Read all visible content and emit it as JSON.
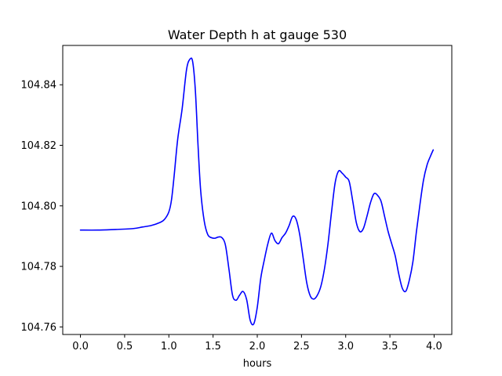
{
  "chart_data": {
    "type": "line",
    "title": "Water Depth h at gauge 530",
    "xlabel": "hours",
    "ylabel": "",
    "xlim": [
      -0.2,
      4.2
    ],
    "ylim": [
      104.7575,
      104.853
    ],
    "grid": false,
    "x_ticks": [
      0.0,
      0.5,
      1.0,
      1.5,
      2.0,
      2.5,
      3.0,
      3.5,
      4.0
    ],
    "x_tick_labels": [
      "0.0",
      "0.5",
      "1.0",
      "1.5",
      "2.0",
      "2.5",
      "3.0",
      "3.5",
      "4.0"
    ],
    "y_ticks": [
      104.76,
      104.78,
      104.8,
      104.82,
      104.84
    ],
    "y_tick_labels": [
      "104.76",
      "104.78",
      "104.80",
      "104.82",
      "104.84"
    ],
    "series": [
      {
        "color": "#0000ff",
        "x": [
          0.0,
          0.2,
          0.4,
          0.6,
          0.7,
          0.8,
          0.9,
          0.95,
          1.0,
          1.03,
          1.06,
          1.1,
          1.15,
          1.2,
          1.24,
          1.27,
          1.3,
          1.33,
          1.36,
          1.4,
          1.44,
          1.48,
          1.52,
          1.56,
          1.6,
          1.64,
          1.68,
          1.72,
          1.76,
          1.8,
          1.84,
          1.88,
          1.92,
          1.96,
          2.0,
          2.04,
          2.08,
          2.12,
          2.16,
          2.2,
          2.24,
          2.28,
          2.32,
          2.36,
          2.4,
          2.44,
          2.48,
          2.52,
          2.56,
          2.6,
          2.64,
          2.68,
          2.72,
          2.76,
          2.8,
          2.84,
          2.88,
          2.92,
          2.96,
          3.0,
          3.04,
          3.08,
          3.12,
          3.16,
          3.2,
          3.24,
          3.28,
          3.32,
          3.36,
          3.4,
          3.44,
          3.48,
          3.52,
          3.56,
          3.6,
          3.64,
          3.68,
          3.72,
          3.76,
          3.8,
          3.84,
          3.88,
          3.92,
          3.96,
          3.99
        ],
        "y": [
          104.792,
          104.792,
          104.7922,
          104.7925,
          104.793,
          104.7935,
          104.7945,
          104.7955,
          104.798,
          104.802,
          104.81,
          104.822,
          104.832,
          104.845,
          104.8485,
          104.8475,
          104.838,
          104.82,
          104.805,
          104.795,
          104.7905,
          104.7895,
          104.7893,
          104.7897,
          104.7895,
          104.787,
          104.779,
          104.7705,
          104.7688,
          104.7705,
          104.7717,
          104.769,
          104.7622,
          104.761,
          104.7665,
          104.7762,
          104.7822,
          104.7875,
          104.791,
          104.7885,
          104.7875,
          104.7895,
          104.791,
          104.7935,
          104.7965,
          104.7955,
          104.7905,
          104.7825,
          104.7745,
          104.7702,
          104.7692,
          104.7705,
          104.7735,
          104.7792,
          104.7875,
          104.798,
          104.8075,
          104.8115,
          104.8108,
          104.8095,
          104.808,
          104.8015,
          104.7945,
          104.7915,
          104.7925,
          104.7965,
          104.801,
          104.804,
          104.8035,
          104.8015,
          104.7965,
          104.7915,
          104.7875,
          104.7835,
          104.7775,
          104.7728,
          104.7718,
          104.7755,
          104.7815,
          104.7915,
          104.8005,
          104.8085,
          104.8135,
          104.8165,
          104.8185
        ]
      }
    ]
  }
}
